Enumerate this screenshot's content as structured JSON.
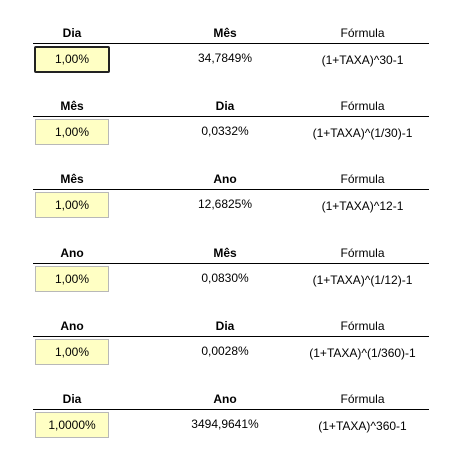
{
  "blocks": [
    {
      "headers": [
        "Dia",
        "Mês",
        "Fórmula"
      ],
      "input": "1,00%",
      "result": "34,7849%",
      "formula": "(1+TAXA)^30-1"
    },
    {
      "headers": [
        "Mês",
        "Dia",
        "Fórmula"
      ],
      "input": "1,00%",
      "result": "0,0332%",
      "formula": "(1+TAXA)^(1/30)-1"
    },
    {
      "headers": [
        "Mês",
        "Ano",
        "Fórmula"
      ],
      "input": "1,00%",
      "result": "12,6825%",
      "formula": "(1+TAXA)^12-1"
    },
    {
      "headers": [
        "Ano",
        "Mês",
        "Fórmula"
      ],
      "input": "1,00%",
      "result": "0,0830%",
      "formula": "(1+TAXA)^(1/12)-1"
    },
    {
      "headers": [
        "Ano",
        "Dia",
        "Fórmula"
      ],
      "input": "1,00%",
      "result": "0,0028%",
      "formula": "(1+TAXA)^(1/360)-1"
    },
    {
      "headers": [
        "Dia",
        "Ano",
        "Fórmula"
      ],
      "input": "1,0000%",
      "result": "3494,9641%",
      "formula": "(1+TAXA)^360-1"
    }
  ]
}
